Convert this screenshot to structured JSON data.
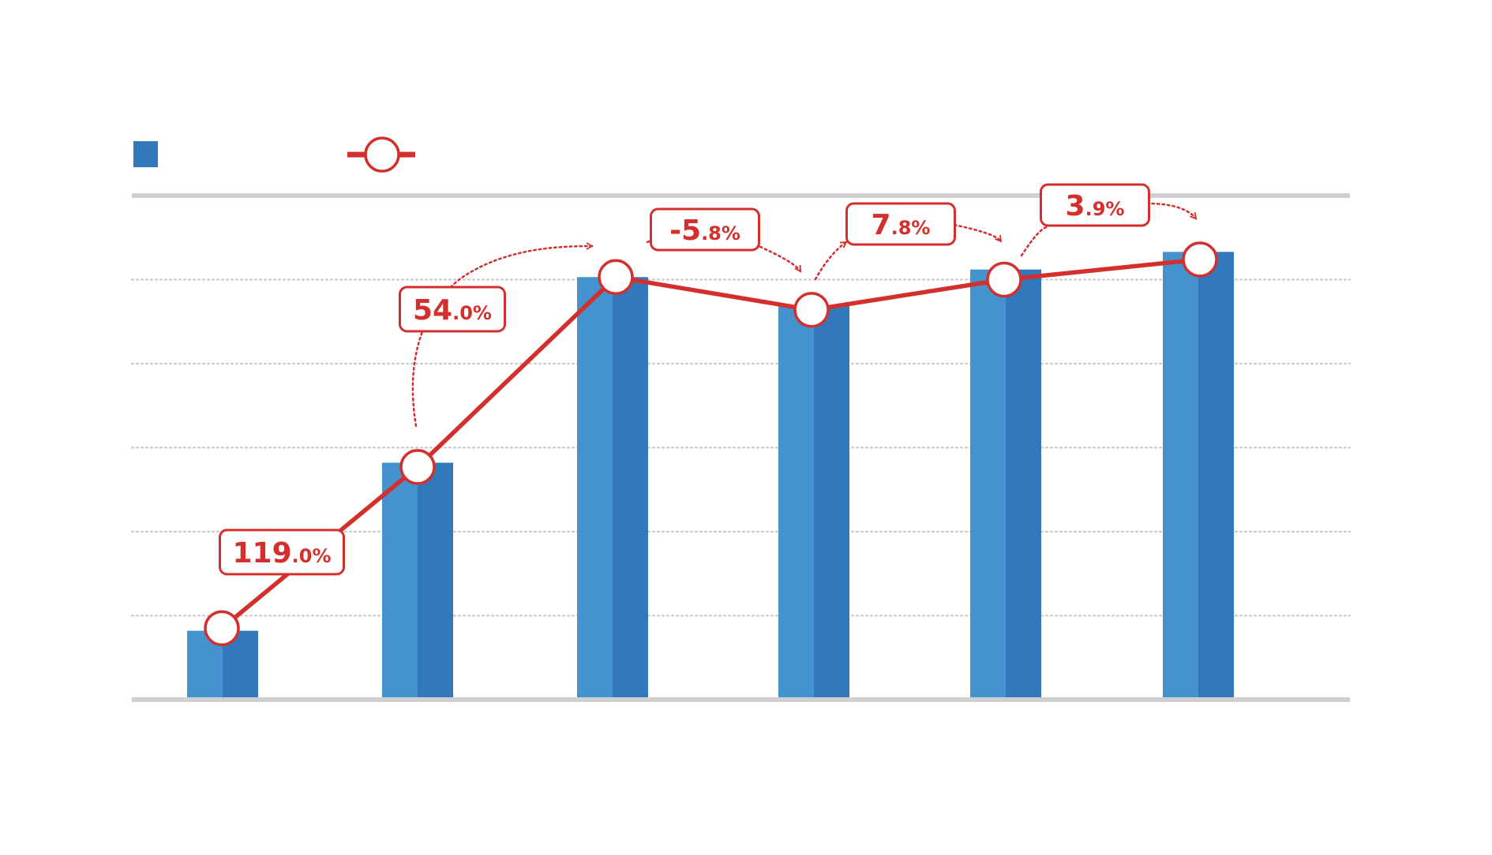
{
  "chart_data": {
    "type": "bar",
    "title": "",
    "xlabel": "",
    "ylabel": "",
    "ylim": [
      0,
      6
    ],
    "grid": true,
    "legend_position": "top-left",
    "categories": [
      "",
      "",
      "",
      "",
      "",
      ""
    ],
    "series": [
      {
        "kind": "bar",
        "values": [
          0.82,
          2.82,
          5.03,
          4.69,
          5.12,
          5.33
        ]
      },
      {
        "kind": "line",
        "values": [
          0.85,
          2.77,
          5.03,
          4.64,
          5.0,
          5.24
        ]
      }
    ],
    "annotations": [
      {
        "from": 0,
        "to": 1,
        "int": "119",
        "dec": ".0%"
      },
      {
        "from": 1,
        "to": 2,
        "int": "54",
        "dec": ".0%"
      },
      {
        "from": 2,
        "to": 3,
        "int": "-5",
        "dec": ".8%"
      },
      {
        "from": 3,
        "to": 4,
        "int": "7",
        "dec": ".8%"
      },
      {
        "from": 4,
        "to": 5,
        "int": "3",
        "dec": ".9%"
      }
    ],
    "colors": {
      "bar_light": "#4492CE",
      "bar_dark": "#3279BC",
      "line": "#D3302D",
      "marker_fill": "#FFFFFF",
      "axis": "#CFCFCF",
      "grid": "#CCCCCC"
    }
  }
}
